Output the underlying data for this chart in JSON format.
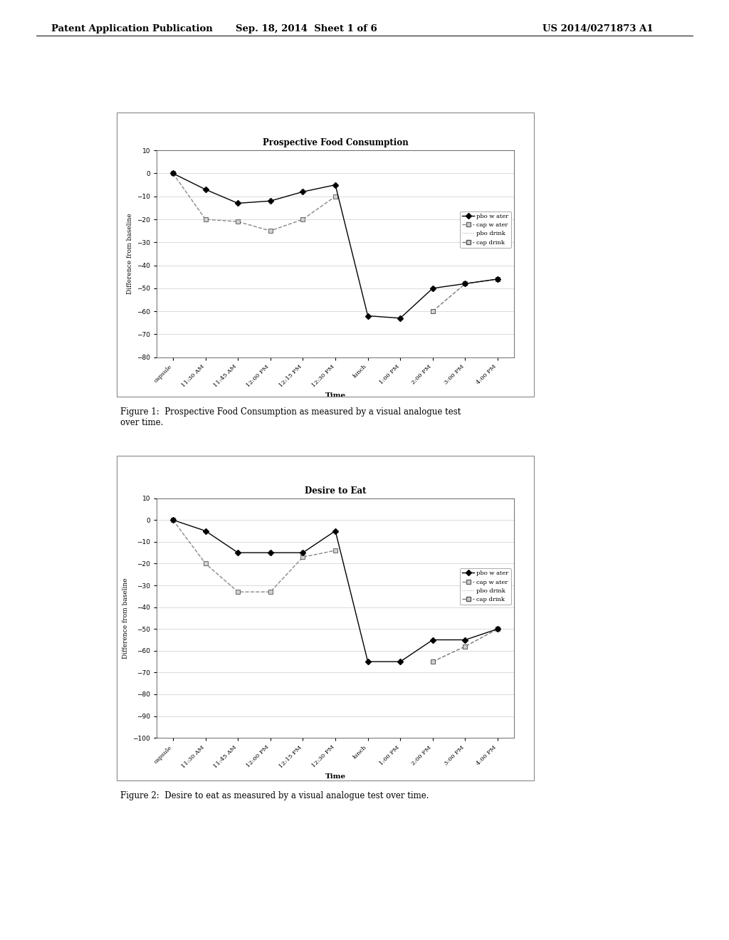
{
  "page_bg": "#ffffff",
  "header_left": "Patent Application Publication",
  "header_mid": "Sep. 18, 2014  Sheet 1 of 6",
  "header_right": "US 2014/0271873 A1",
  "fig1_title": "Prospective Food Consumption",
  "fig1_ylabel": "Difference from baseline",
  "fig1_xlabel": "Time",
  "fig1_ylim": [
    -80,
    10
  ],
  "fig1_yticks": [
    10,
    0,
    -10,
    -20,
    -30,
    -40,
    -50,
    -60,
    -70,
    -80
  ],
  "fig1_caption": "Figure 1:  Prospective Food Consumption as measured by a visual analogue test\nover time.",
  "fig1_xtick_labels": [
    "capsule",
    "11:30 AM",
    "11:45 AM",
    "12:00 PM",
    "12:15 PM",
    "12:30 PM",
    "lunch",
    "1:00 PM",
    "2:00 PM",
    "3:00 PM",
    "4:00 PM"
  ],
  "fig1_pbo_water": [
    0,
    -7,
    -13,
    -12,
    -8,
    -5,
    -62,
    -63,
    -50,
    -48,
    -46
  ],
  "fig1_cap_water": [
    0,
    -20,
    -21,
    -25,
    -20,
    -10,
    null,
    null,
    null,
    null,
    null
  ],
  "fig1_pbo_drink": [
    null,
    null,
    null,
    null,
    null,
    null,
    null,
    null,
    null,
    null,
    null
  ],
  "fig1_cap_drink": [
    null,
    null,
    null,
    null,
    null,
    null,
    null,
    null,
    -60,
    -48,
    -46
  ],
  "fig2_title": "Desire to Eat",
  "fig2_ylabel": "Difference from baseline",
  "fig2_xlabel": "Time",
  "fig2_ylim": [
    -100,
    10
  ],
  "fig2_yticks": [
    10,
    0,
    -10,
    -20,
    -30,
    -40,
    -50,
    -60,
    -70,
    -80,
    -90,
    -100
  ],
  "fig2_caption": "Figure 2:  Desire to eat as measured by a visual analogue test over time.",
  "fig2_xtick_labels": [
    "capsule",
    "11:30 AM",
    "11:45 AM",
    "12:00 PM",
    "12:15 PM",
    "12:30 PM",
    "lunch",
    "1:00 PM",
    "2:00 PM",
    "3:00 PM",
    "4:00 PM"
  ],
  "fig2_pbo_water": [
    0,
    -5,
    -15,
    -15,
    -15,
    -5,
    -65,
    -65,
    -55,
    -55,
    -50
  ],
  "fig2_cap_water": [
    0,
    -20,
    -33,
    -33,
    -17,
    -14,
    null,
    null,
    null,
    null,
    null
  ],
  "fig2_pbo_drink": [
    null,
    null,
    null,
    null,
    null,
    null,
    null,
    null,
    null,
    null,
    null
  ],
  "fig2_cap_drink": [
    null,
    null,
    null,
    null,
    null,
    null,
    null,
    null,
    -65,
    -58,
    -50
  ],
  "legend_labels": [
    "pbo w ater",
    "cap w ater",
    "pbo drink",
    "cap drink"
  ]
}
